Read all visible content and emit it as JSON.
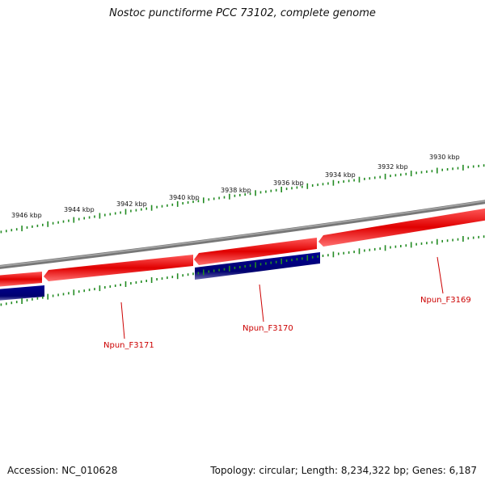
{
  "title": "Nostoc punctiforme PCC 73102, complete genome",
  "footer": {
    "accession": "Accession: NC_010628",
    "summary": "Topology: circular; Length: 8,234,322 bp; Genes: 6,187"
  },
  "colors": {
    "backbone": "#808080",
    "forward_gene": "#ee0000",
    "reverse_gene": "#000080",
    "tick": "#228b22",
    "label": "#cc0000"
  },
  "ruler": {
    "ticks": [
      "3946 kbp",
      "3944 kbp",
      "3942 kbp",
      "3940 kbp",
      "3938 kbp",
      "3936 kbp",
      "3934 kbp",
      "3932 kbp",
      "3930 kbp"
    ]
  },
  "genes": [
    {
      "label": "Npun_F3171"
    },
    {
      "label": "Npun_F3170"
    },
    {
      "label": "Npun_F3169"
    }
  ]
}
